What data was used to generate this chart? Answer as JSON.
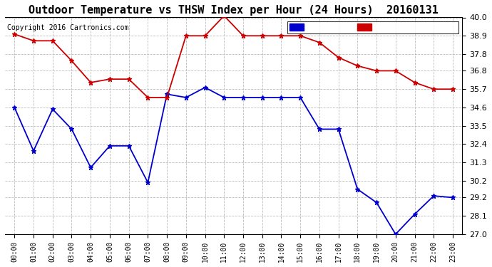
{
  "title": "Outdoor Temperature vs THSW Index per Hour (24 Hours)  20160131",
  "copyright": "Copyright 2016 Cartronics.com",
  "hours": [
    "00:00",
    "01:00",
    "02:00",
    "03:00",
    "04:00",
    "05:00",
    "06:00",
    "07:00",
    "08:00",
    "09:00",
    "10:00",
    "11:00",
    "12:00",
    "13:00",
    "14:00",
    "15:00",
    "16:00",
    "17:00",
    "18:00",
    "19:00",
    "20:00",
    "21:00",
    "22:00",
    "23:00"
  ],
  "temperature": [
    39.0,
    38.6,
    38.6,
    37.4,
    36.1,
    36.3,
    36.3,
    35.2,
    35.2,
    38.9,
    38.9,
    40.1,
    38.9,
    38.9,
    38.9,
    38.9,
    38.5,
    37.6,
    37.1,
    36.8,
    36.8,
    36.1,
    35.7,
    35.7
  ],
  "thsw": [
    34.6,
    32.0,
    34.5,
    33.3,
    31.0,
    32.3,
    32.3,
    30.1,
    35.4,
    35.2,
    35.8,
    35.2,
    35.2,
    35.2,
    35.2,
    35.2,
    33.3,
    33.3,
    29.7,
    28.9,
    27.0,
    28.2,
    29.3,
    29.2
  ],
  "ylim_min": 27.0,
  "ylim_max": 40.0,
  "yticks": [
    27.0,
    28.1,
    29.2,
    30.2,
    31.3,
    32.4,
    33.5,
    34.6,
    35.7,
    36.8,
    37.8,
    38.9,
    40.0
  ],
  "temp_color": "#cc0000",
  "thsw_color": "#0000cc",
  "background_color": "#ffffff",
  "grid_color": "#bbbbbb",
  "title_fontsize": 11,
  "legend_thsw_bg": "#0000cc",
  "legend_temp_bg": "#cc0000"
}
